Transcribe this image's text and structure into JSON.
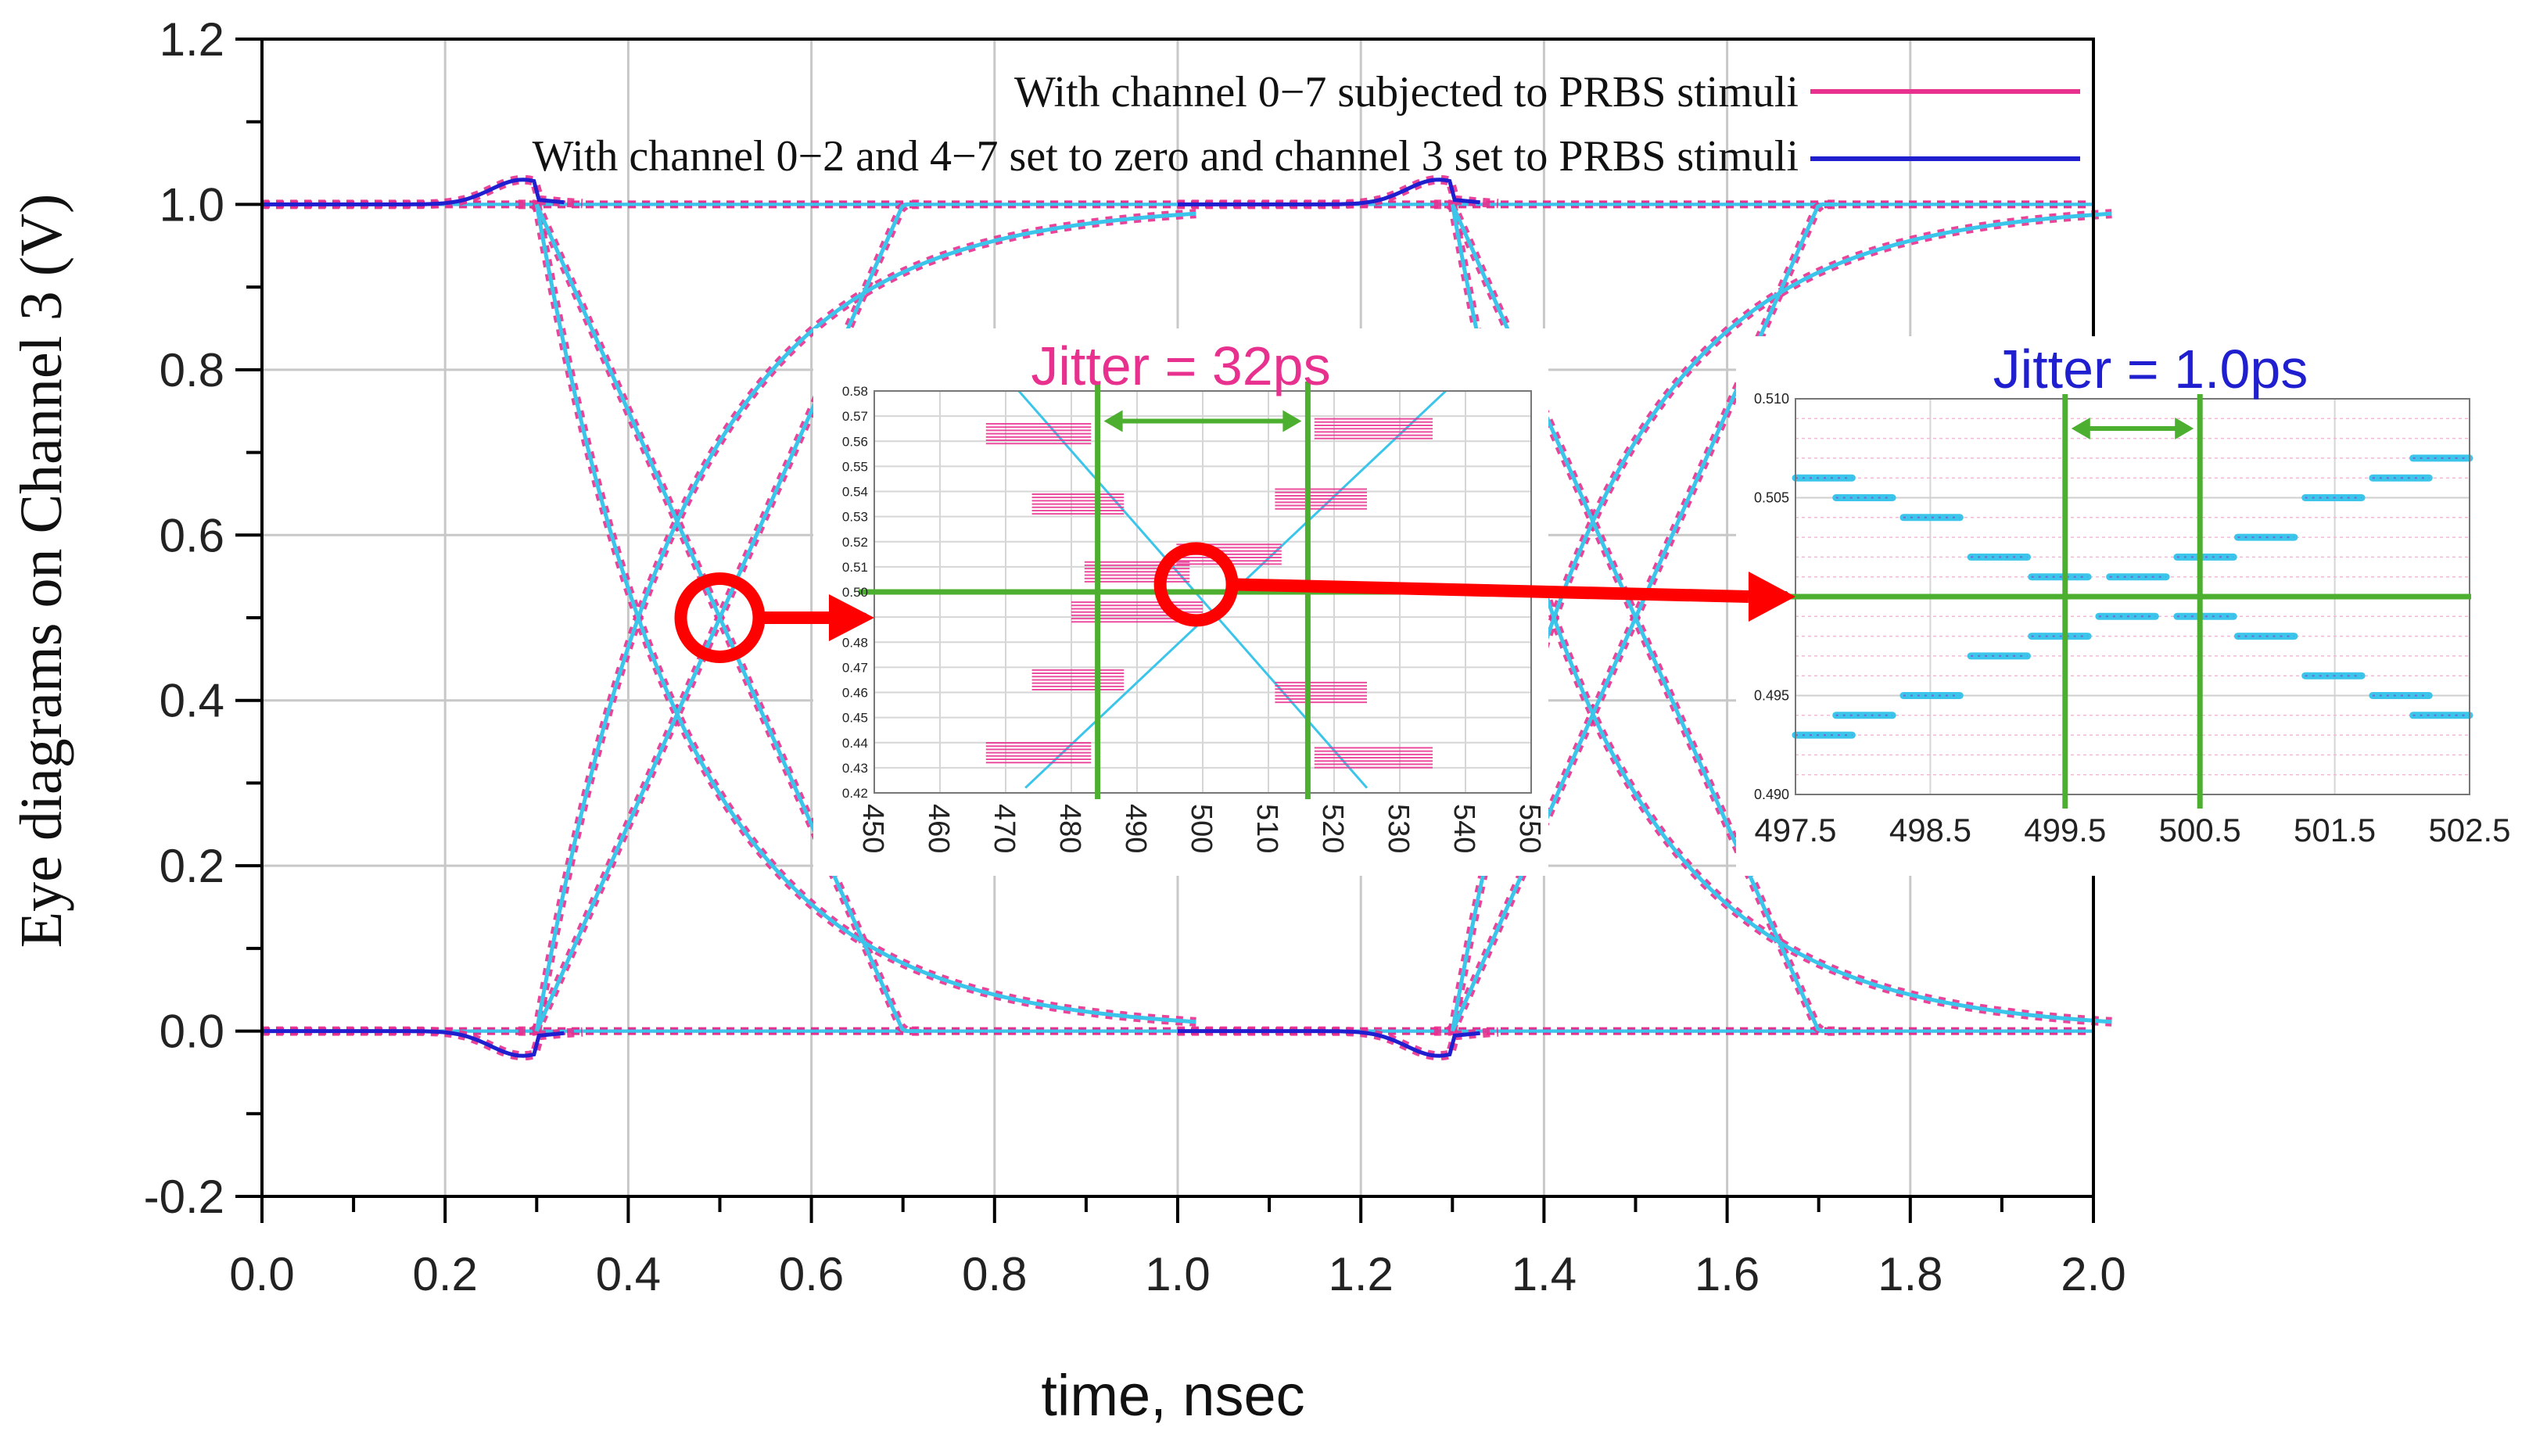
{
  "colors": {
    "magenta": "#e8308f",
    "pink_light": "#f4a6cf",
    "blue_dark": "#1f1fcf",
    "cyan": "#3bc5ea",
    "cyan_dot": "#1ea8dd",
    "green": "#4caf2f",
    "red": "#ff0000",
    "grid": "#c8c8c8",
    "frame": "#000000"
  },
  "chart_data": [
    {
      "id": "main",
      "type": "line",
      "title": "",
      "xlabel": "time, nsec",
      "ylabel": "Eye diagrams on Channel 3 (V)",
      "xlim": [
        0.0,
        2.0
      ],
      "ylim": [
        -0.2,
        1.2
      ],
      "x_ticks": [
        0.0,
        0.2,
        0.4,
        0.6,
        0.8,
        1.0,
        1.2,
        1.4,
        1.6,
        1.8,
        2.0
      ],
      "x_tick_labels": [
        "0.0",
        "0.2",
        "0.4",
        "0.6",
        "0.8",
        "1.0",
        "1.2",
        "1.4",
        "1.6",
        "1.8",
        "2.0"
      ],
      "y_ticks": [
        -0.2,
        0.0,
        0.2,
        0.4,
        0.6,
        0.8,
        1.0,
        1.2
      ],
      "y_tick_labels": [
        "-0.2",
        "0.0",
        "0.2",
        "0.4",
        "0.6",
        "0.8",
        "1.0",
        "1.2"
      ],
      "grid": true,
      "legend_position": "top-right",
      "legend": [
        {
          "label": "With channel 0−7 subjected to PRBS stimuli",
          "color": "#e8308f"
        },
        {
          "label": "With channel 0−2 and 4−7 set to zero and channel 3 set to PRBS stimuli",
          "color": "#1f1fcf"
        }
      ],
      "series_description": "Eye diagram: 1 UI = 1 ns; falling transitions at 0.3 and 1.3 ns, rising transitions at 0.3–1.0 and 1.3–2.0 ns; crossings near 0.5 V at 0.5 ns and 1.5 ns",
      "series": [
        {
          "name": "fall_edge_1",
          "kind": "fall",
          "t0": 0.3,
          "color_role": "both"
        },
        {
          "name": "rise_edge_1",
          "kind": "rise",
          "t0": 0.3,
          "color_role": "both"
        },
        {
          "name": "fall_edge_2",
          "kind": "fall",
          "t0": 1.3,
          "color_role": "both"
        },
        {
          "name": "rise_edge_2",
          "kind": "rise",
          "t0": 1.3,
          "color_role": "both"
        },
        {
          "name": "fall_tail_1",
          "kind": "fall_tail",
          "t0": 0.5,
          "color_role": "both"
        },
        {
          "name": "fall_tail_2",
          "kind": "fall_tail",
          "t0": 1.5,
          "color_role": "both"
        }
      ],
      "highlight_circles": [
        {
          "x": 0.5,
          "y": 0.5
        }
      ]
    },
    {
      "id": "inset_32ps",
      "type": "line",
      "annotation": "Jitter = 32ps",
      "xlim": [
        450,
        550
      ],
      "ylim": [
        0.42,
        0.58
      ],
      "x_ticks": [
        450,
        460,
        470,
        480,
        490,
        500,
        510,
        520,
        530,
        540,
        550
      ],
      "x_tick_labels": [
        "450",
        "460",
        "470",
        "480",
        "490",
        "500",
        "510",
        "520",
        "530",
        "540",
        "550"
      ],
      "y_ticks": [
        0.42,
        0.43,
        0.44,
        0.45,
        0.46,
        0.47,
        0.48,
        0.49,
        0.5,
        0.51,
        0.52,
        0.53,
        0.54,
        0.55,
        0.56,
        0.57,
        0.58
      ],
      "y_tick_labels": [
        "0.42",
        "0.43",
        "0.44",
        "0.45",
        "0.46",
        "0.47",
        "0.48",
        "0.49",
        "0.50",
        "0.51",
        "0.52",
        "0.53",
        "0.54",
        "0.55",
        "0.56",
        "0.57",
        "0.58"
      ],
      "jitter_markers_x": [
        484,
        516
      ],
      "reference_y": 0.5,
      "pink_clusters": [
        {
          "x0": 467,
          "x1": 483,
          "yc": 0.563
        },
        {
          "x0": 474,
          "x1": 488,
          "yc": 0.535
        },
        {
          "x0": 482,
          "x1": 498,
          "yc": 0.508
        },
        {
          "x0": 480,
          "x1": 500,
          "yc": 0.492
        },
        {
          "x0": 474,
          "x1": 488,
          "yc": 0.465
        },
        {
          "x0": 467,
          "x1": 483,
          "yc": 0.436
        },
        {
          "x0": 517,
          "x1": 535,
          "yc": 0.565
        },
        {
          "x0": 511,
          "x1": 525,
          "yc": 0.537
        },
        {
          "x0": 496,
          "x1": 512,
          "yc": 0.515
        },
        {
          "x0": 511,
          "x1": 525,
          "yc": 0.46
        },
        {
          "x0": 517,
          "x1": 535,
          "yc": 0.434
        }
      ],
      "cyan_lines": [
        {
          "x": [
            472,
            525
          ],
          "y": [
            0.58,
            0.422
          ]
        },
        {
          "x": [
            473,
            537
          ],
          "y": [
            0.422,
            0.58
          ]
        }
      ],
      "highlight_circles": [
        {
          "x": 499,
          "y": 0.503
        }
      ]
    },
    {
      "id": "inset_1ps",
      "type": "scatter",
      "annotation": "Jitter = 1.0ps",
      "xlim": [
        497.5,
        502.5
      ],
      "ylim": [
        0.49,
        0.51
      ],
      "x_ticks": [
        497.5,
        498.5,
        499.5,
        500.5,
        501.5,
        502.5
      ],
      "x_tick_labels": [
        "497.5",
        "498.5",
        "499.5",
        "500.5",
        "501.5",
        "502.5"
      ],
      "y_ticks": [
        0.49,
        0.495,
        0.5,
        0.505,
        0.51
      ],
      "y_tick_labels": [
        "0.490",
        "0.495",
        "0.500",
        "0.505",
        "0.510"
      ],
      "jitter_markers_x": [
        499.5,
        500.5
      ],
      "reference_y": 0.5,
      "falling_steps": {
        "x": [
          497.5,
          497.8,
          498.3,
          498.8,
          499.25,
          499.75
        ],
        "y": [
          0.506,
          0.505,
          0.504,
          0.502,
          0.501,
          0.499
        ]
      },
      "rising_steps": {
        "x": [
          497.5,
          497.8,
          498.3,
          498.8,
          499.25
        ],
        "y": [
          0.493,
          0.494,
          0.495,
          0.497,
          0.498
        ]
      },
      "mirror_center": 500.0
    }
  ]
}
